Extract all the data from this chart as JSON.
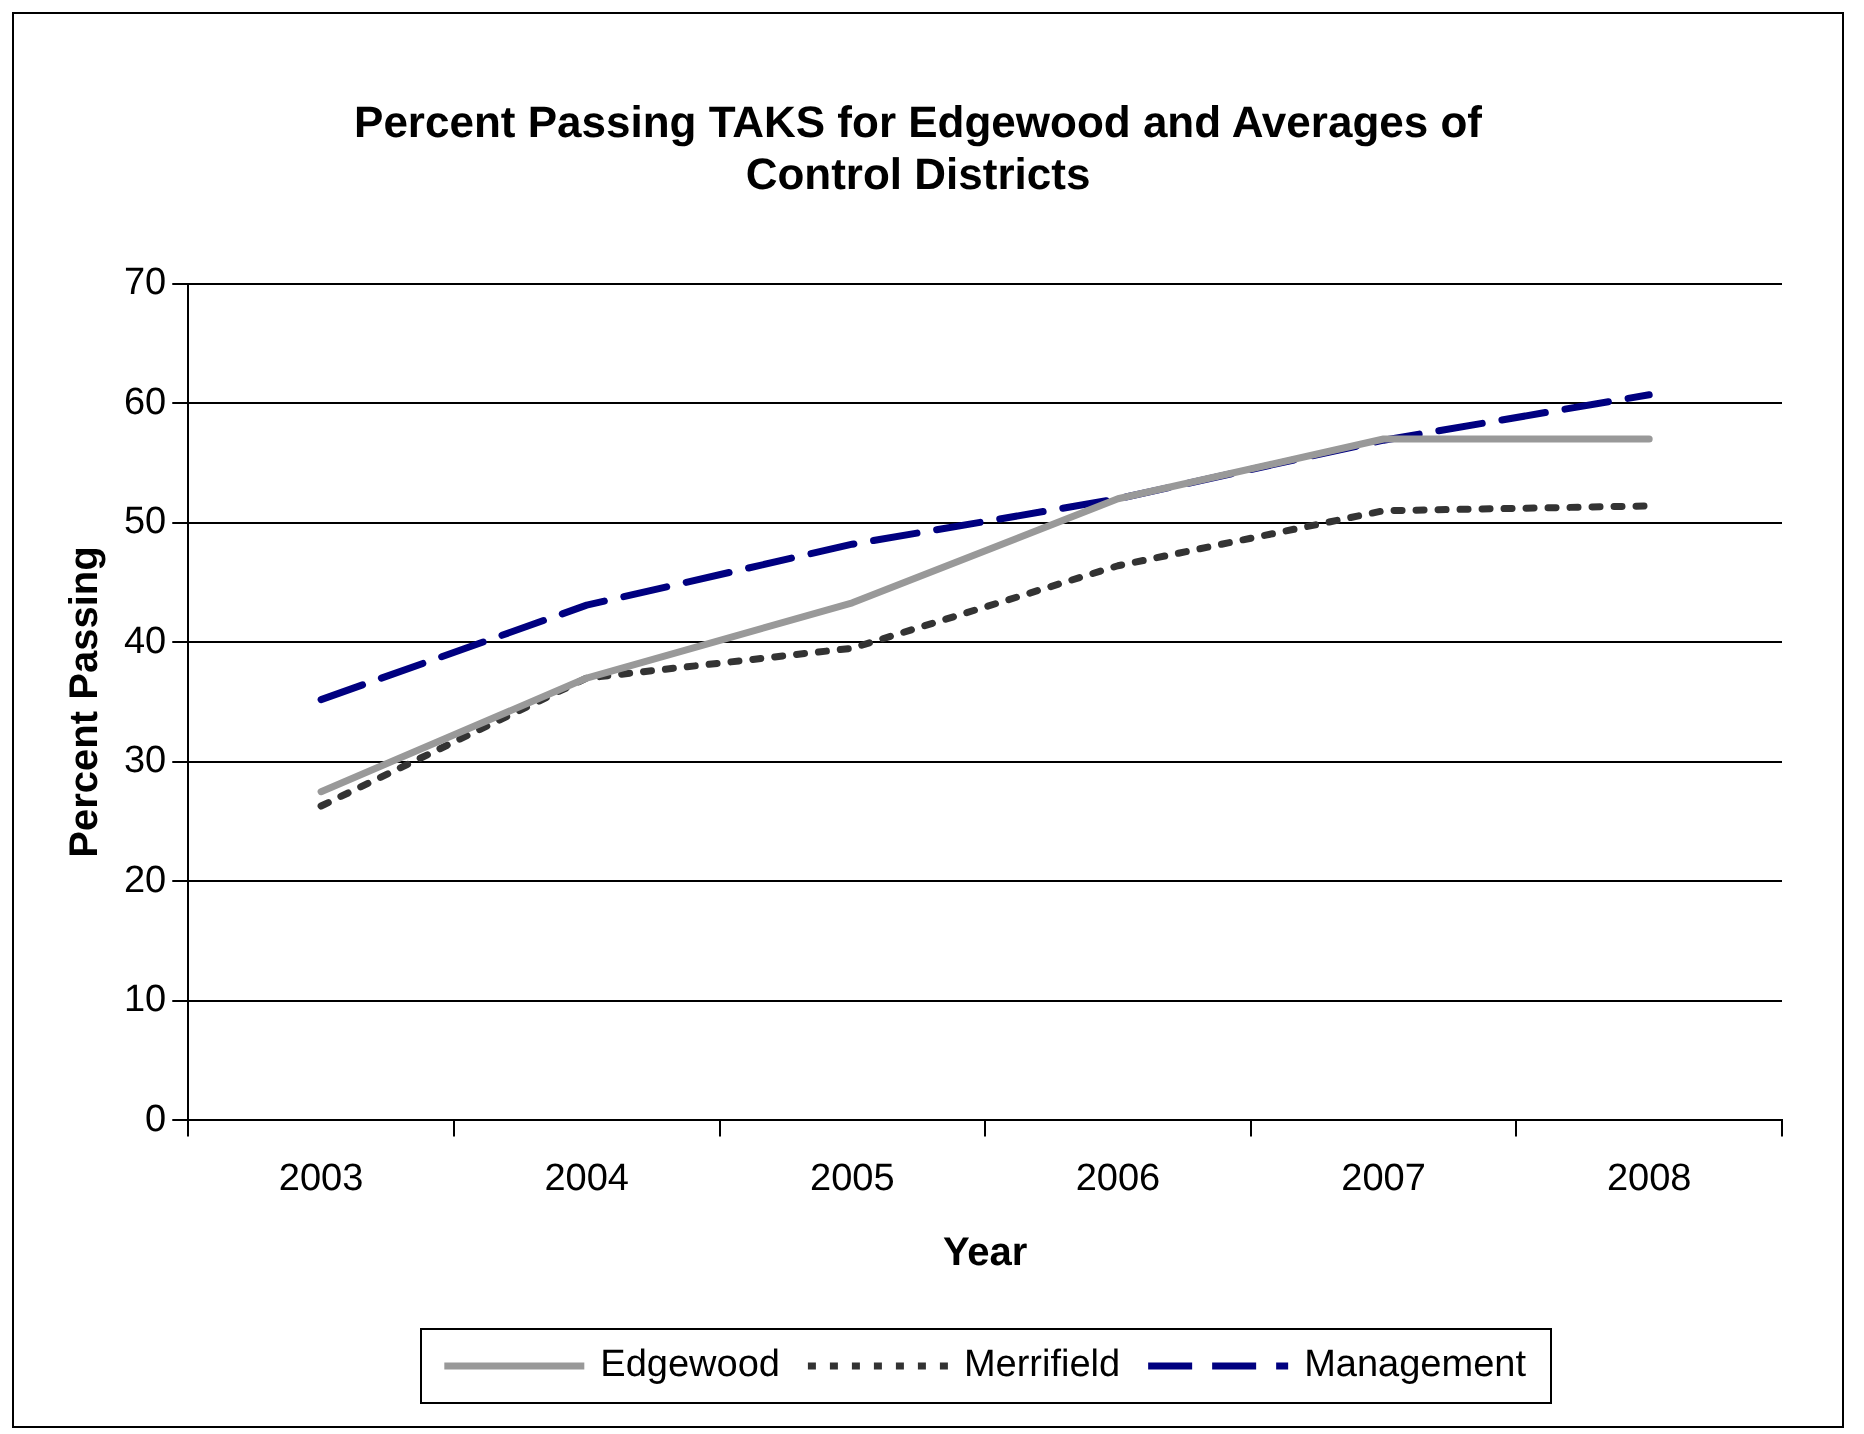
{
  "chart_data": {
    "type": "line",
    "title": "Percent Passing TAKS for Edgewood and Averages of Control Districts",
    "xlabel": "Year",
    "ylabel": "Percent Passing",
    "categories": [
      "2003",
      "2004",
      "2005",
      "2006",
      "2007",
      "2008"
    ],
    "series": [
      {
        "name": "Edgewood",
        "color": "#999999",
        "line_style": "solid",
        "values": [
          27.5,
          37,
          43.3,
          52,
          57,
          57
        ]
      },
      {
        "name": "Merrifield",
        "color": "#333333",
        "line_style": "dotted",
        "values": [
          26.3,
          37,
          39.5,
          46.4,
          51,
          51.4
        ]
      },
      {
        "name": "Management",
        "color": "#000080",
        "line_style": "dashed",
        "values": [
          35.2,
          43.1,
          48.2,
          52,
          56.9,
          60.7
        ]
      }
    ],
    "ylim": [
      0,
      70
    ],
    "yticks": [
      0,
      10,
      20,
      30,
      40,
      50,
      60,
      70
    ],
    "grid": "y",
    "legend": "bottom",
    "marker": "none"
  }
}
